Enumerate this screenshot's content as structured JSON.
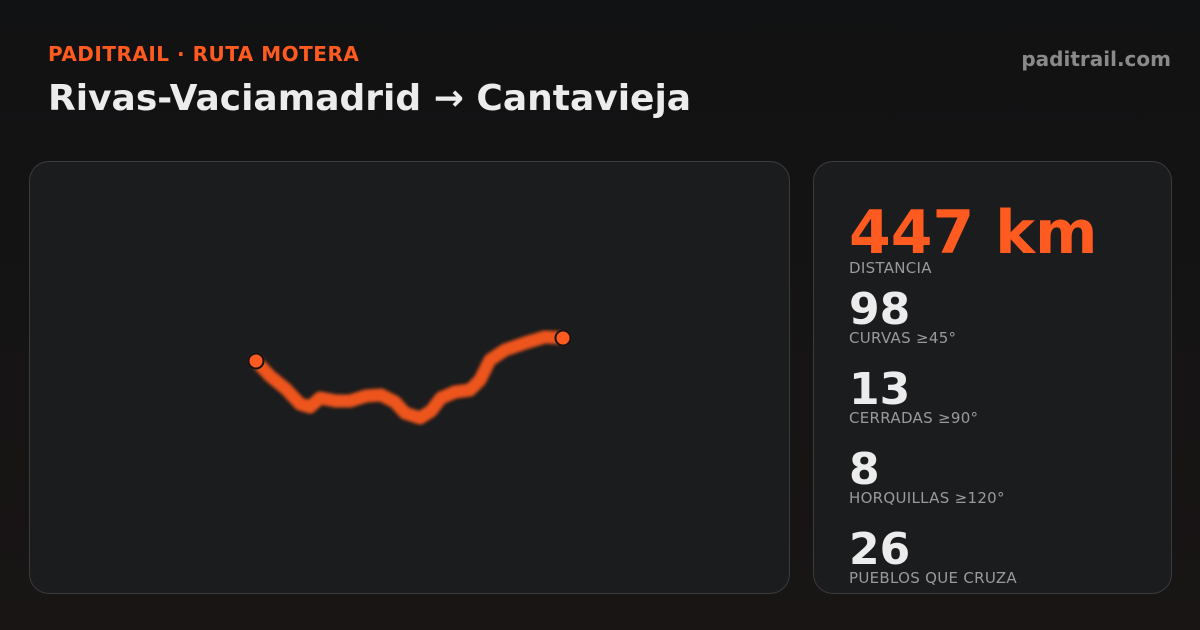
{
  "header": {
    "kicker": "PADITRAIL · RUTA MOTERA",
    "title": "Rivas-Vaciamadrid → Cantavieja",
    "site": "paditrail.com"
  },
  "stats": [
    {
      "value": "447 km",
      "label": "DISTANCIA"
    },
    {
      "value": "98",
      "label": "CURVAS ≥45°"
    },
    {
      "value": "13",
      "label": "CERRADAS ≥90°"
    },
    {
      "value": "8",
      "label": "HORQUILLAS ≥120°"
    },
    {
      "value": "26",
      "label": "PUEBLOS QUE CRUZA"
    }
  ]
}
